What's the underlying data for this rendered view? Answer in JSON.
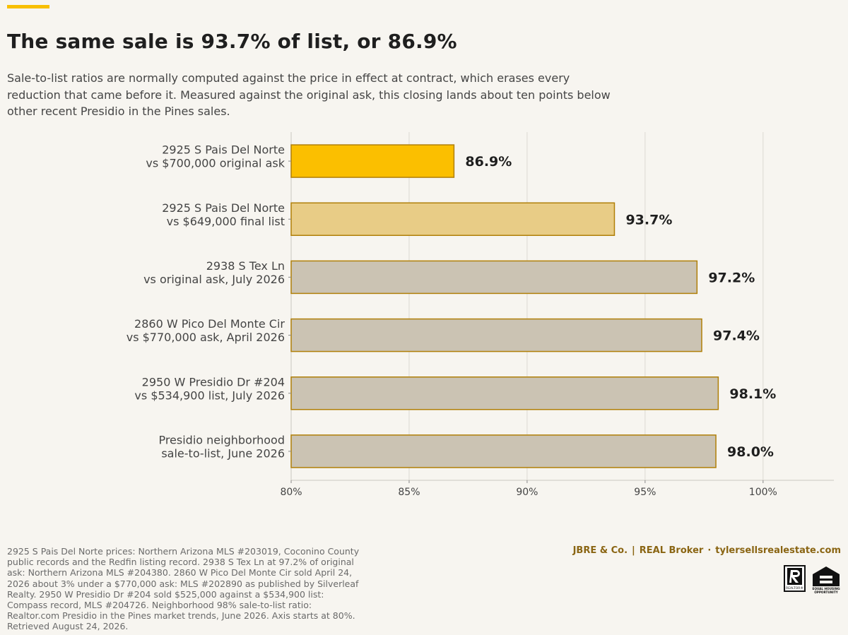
{
  "header": {
    "title": "The same sale is 93.7% of list, or 86.9%",
    "subtitle": "Sale-to-list ratios are normally computed against the price in effect at contract, which erases every reduction that came before it. Measured against the original ask, this closing lands about ten points below other recent Presidio in the Pines sales."
  },
  "colors": {
    "accent": "#f8bf00",
    "highlight_bar": "#fbbf00",
    "light_bar": "#e8cc86",
    "neutral_bar": "#cbc3b3",
    "bar_outline": "#b07f08",
    "background": "#f7f5f0"
  },
  "chart_data": {
    "type": "bar",
    "orientation": "horizontal",
    "categories": [
      [
        "2925 S Pais Del Norte",
        "vs $700,000 original ask"
      ],
      [
        "2925 S Pais Del Norte",
        "vs $649,000 final list"
      ],
      [
        "2938 S Tex Ln",
        "vs original ask, July 2026"
      ],
      [
        "2860 W Pico Del Monte Cir",
        "vs $770,000 ask, April 2026"
      ],
      [
        "2950 W Presidio Dr #204",
        "vs $534,900 list, July 2026"
      ],
      [
        "Presidio neighborhood",
        "sale-to-list, June 2026"
      ]
    ],
    "values": [
      86.9,
      93.7,
      97.2,
      97.4,
      98.1,
      98.0
    ],
    "value_labels": [
      "86.9%",
      "93.7%",
      "97.2%",
      "97.4%",
      "98.1%",
      "98.0%"
    ],
    "bar_styles": [
      "highlight",
      "light",
      "neutral",
      "neutral",
      "neutral",
      "neutral"
    ],
    "xlim": [
      80,
      103
    ],
    "xticks": [
      80,
      85,
      90,
      95,
      100
    ],
    "xtick_labels": [
      "80%",
      "85%",
      "90%",
      "95%",
      "100%"
    ],
    "grid": "vertical",
    "legend": "none"
  },
  "footer": {
    "source": "2925 S Pais Del Norte prices: Northern Arizona MLS #203019, Coconino County public records and the Redfin listing record. 2938 S Tex Ln at 97.2% of original ask: Northern Arizona MLS #204380. 2860 W Pico Del Monte Cir sold April 24, 2026 about 3% under a $770,000 ask: MLS #202890 as published by Silverleaf Realty. 2950 W Presidio Dr #204 sold $525,000 against a $534,900 list: Compass record, MLS #204726. Neighborhood 98% sale-to-list ratio: Realtor.com Presidio in the Pines market trends, June 2026. Axis starts at 80%. Retrieved August 24, 2026.",
    "brand_name": "JBRE & Co.",
    "brand_divider": "|",
    "brand_broker": "REAL Broker",
    "brand_dot": "·",
    "brand_site": "tylersellsrealestate.com",
    "realtor_mark": "REALTOR®",
    "equal_housing": [
      "EQUAL HOUSING",
      "OPPORTUNITY"
    ],
    "realtor_icon": "realtor-r-icon",
    "equal_housing_icon": "equal-housing-house-icon"
  }
}
